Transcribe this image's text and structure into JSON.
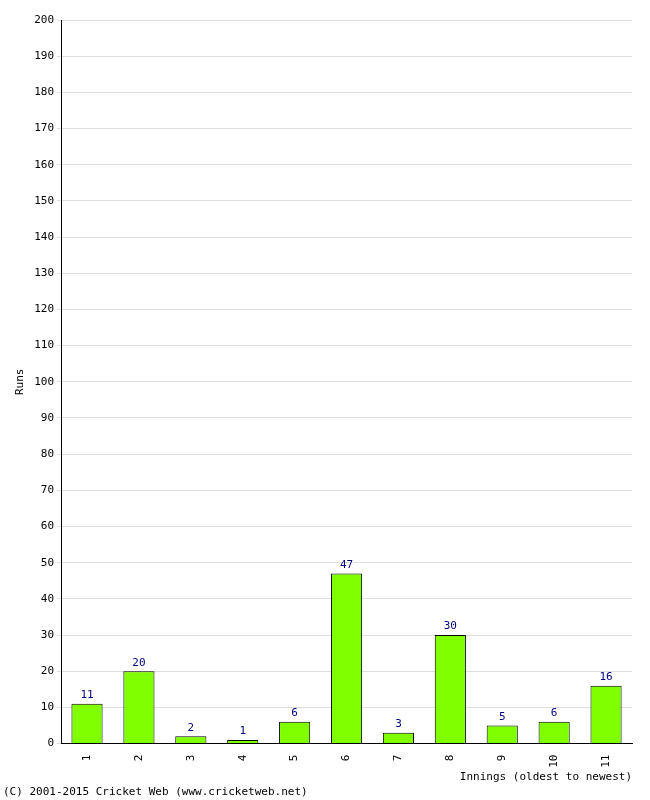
{
  "chart_data": {
    "type": "bar",
    "categories": [
      "1",
      "2",
      "3",
      "4",
      "5",
      "6",
      "7",
      "8",
      "9",
      "10",
      "11"
    ],
    "values": [
      11,
      20,
      2,
      1,
      6,
      47,
      3,
      30,
      5,
      6,
      16
    ],
    "color": "#80ff00",
    "xlabel": "Innings (oldest to newest)",
    "ylabel": "Runs",
    "ylim": [
      0,
      200
    ],
    "yticks": [
      0,
      10,
      20,
      30,
      40,
      50,
      60,
      70,
      80,
      90,
      100,
      110,
      120,
      130,
      140,
      150,
      160,
      170,
      180,
      190,
      200
    ],
    "grid": true,
    "data_labels": true,
    "annotations": [
      "(C) 2001-2015 Cricket Web (www.cricketweb.net)"
    ]
  }
}
